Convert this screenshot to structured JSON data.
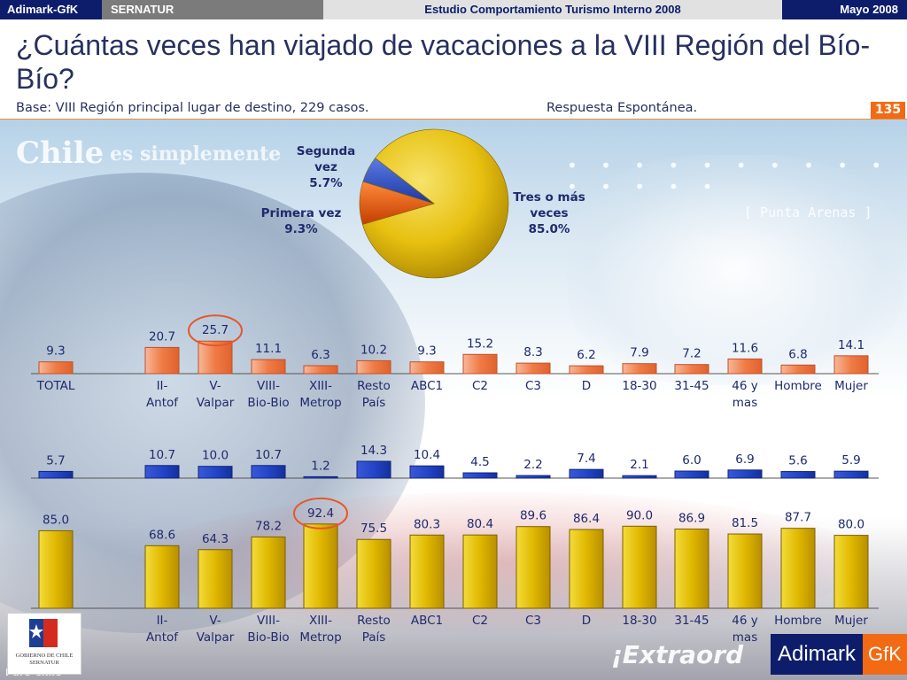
{
  "topbar": {
    "brand": "Adimark-GfK",
    "client": "SERNATUR",
    "study": "Estudio Comportamiento Turismo Interno 2008",
    "date": "Mayo 2008"
  },
  "header": {
    "title": "¿Cuántas veces han viajado de vacaciones a la VIII Región del Bío-Bío?",
    "base": "Base: VIII Región principal lugar de destino, 229 casos.",
    "response_type": "Respuesta Espontánea.",
    "page_number": "135"
  },
  "background": {
    "slogan_1": "Chile",
    "slogan_2": "es simplemente",
    "dots": "• • • • • • • • • • • • • • •",
    "place": "[ Punta Arenas ]",
    "tagline": "¡Extraord",
    "puro": "Puro Chile"
  },
  "logos": {
    "gobierno": "GOBIERNO DE CHILE",
    "sernatur": "SERNATUR",
    "adimark": "Adimark",
    "gfk": "GfK"
  },
  "colors": {
    "orange_bar": "#f07b45",
    "blue_bar": "#2445c8",
    "gold_bar": "#e9c200",
    "pie_gold": "#e7c010",
    "pie_orange": "#ef5a0b",
    "pie_blue": "#2e52c9",
    "highlight": "#e6572a",
    "label_dark": "#1f2a6b"
  },
  "chart_data": [
    {
      "type": "pie",
      "title": "¿Cuántas veces han viajado de vacaciones a la VIII Región del Bío-Bío?",
      "slices": [
        {
          "label": "Tres o más veces",
          "value": 85.0,
          "display": "85.0%",
          "label_lines": [
            "Tres o más",
            "veces",
            "85.0%"
          ]
        },
        {
          "label": "Primera vez",
          "value": 9.3,
          "display": "9.3%",
          "label_lines": [
            "Primera vez",
            "9.3%"
          ]
        },
        {
          "label": "Segunda vez",
          "value": 5.7,
          "display": "5.7%",
          "label_lines": [
            "Segunda",
            "vez",
            "5.7%"
          ]
        }
      ]
    },
    {
      "type": "bar",
      "series": [
        {
          "name": "Primera vez",
          "values": [
            9.3,
            20.7,
            25.7,
            11.1,
            6.3,
            10.2,
            9.3,
            15.2,
            8.3,
            6.2,
            7.9,
            7.2,
            11.6,
            6.8,
            14.1
          ]
        }
      ],
      "value_labels": [
        "9.3",
        "20.7",
        "25.7",
        "11.1",
        "6.3",
        "10.2",
        "9.3",
        "15.2",
        "8.3",
        "6.2",
        "7.9",
        "7.2",
        "11.6",
        "6.8",
        "14.1"
      ],
      "categories": [
        [
          "TOTAL"
        ],
        [
          "II-",
          "Antof"
        ],
        [
          "V-",
          "Valpar"
        ],
        [
          "VIII-",
          "Bio-Bio"
        ],
        [
          "XIII-",
          "Metrop"
        ],
        [
          "Resto",
          "País"
        ],
        [
          "ABC1"
        ],
        [
          "C2"
        ],
        [
          "C3"
        ],
        [
          "D"
        ],
        [
          "18-30"
        ],
        [
          "31-45"
        ],
        [
          "46 y",
          "mas"
        ],
        [
          "Hombre"
        ],
        [
          "Mujer"
        ]
      ],
      "highlighted_index": 2,
      "ylim": [
        0,
        60
      ]
    },
    {
      "type": "bar",
      "series": [
        {
          "name": "Segunda vez",
          "values": [
            5.7,
            10.7,
            10.0,
            10.7,
            1.2,
            14.3,
            10.4,
            4.5,
            2.2,
            7.4,
            2.1,
            6.0,
            6.9,
            5.6,
            5.9
          ]
        }
      ],
      "value_labels": [
        "5.7",
        "10.7",
        "10.0",
        "10.7",
        "1.2",
        "14.3",
        "10.4",
        "4.5",
        "2.2",
        "7.4",
        "2.1",
        "6.0",
        "6.9",
        "5.6",
        "5.9"
      ],
      "ylim": [
        0,
        60
      ]
    },
    {
      "type": "bar",
      "series": [
        {
          "name": "Tres o más veces",
          "values": [
            85.0,
            68.6,
            64.3,
            78.2,
            92.4,
            75.5,
            80.3,
            80.4,
            89.6,
            86.4,
            90.0,
            86.9,
            81.5,
            87.7,
            80.0
          ]
        }
      ],
      "value_labels": [
        "85.0",
        "68.6",
        "64.3",
        "78.2",
        "92.4",
        "75.5",
        "80.3",
        "80.4",
        "89.6",
        "86.4",
        "90.0",
        "86.9",
        "81.5",
        "87.7",
        "80.0"
      ],
      "categories": [
        [
          "TOTAL"
        ],
        [
          "II-",
          "Antof"
        ],
        [
          "V-",
          "Valpar"
        ],
        [
          "VIII-",
          "Bio-Bio"
        ],
        [
          "XIII-",
          "Metrop"
        ],
        [
          "Resto",
          "País"
        ],
        [
          "ABC1"
        ],
        [
          "C2"
        ],
        [
          "C3"
        ],
        [
          "D"
        ],
        [
          "18-30"
        ],
        [
          "31-45"
        ],
        [
          "46 y",
          "mas"
        ],
        [
          "Hombre"
        ],
        [
          "Mujer"
        ]
      ],
      "highlighted_index": 4,
      "ylim": [
        0,
        100
      ]
    }
  ]
}
